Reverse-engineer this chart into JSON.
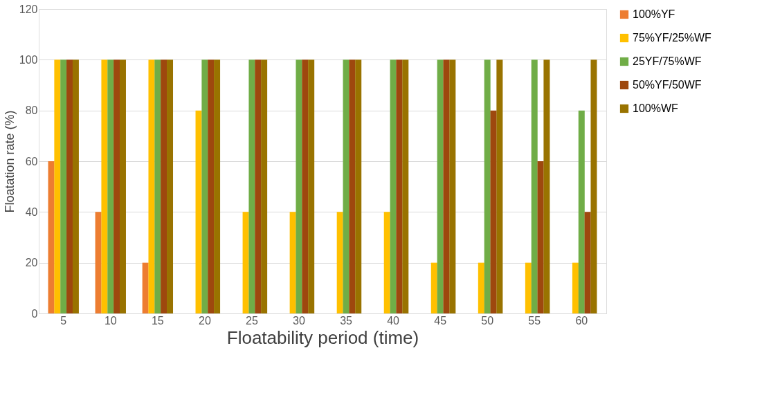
{
  "chart_data": {
    "type": "bar",
    "xlabel": "Floatability period (time)",
    "ylabel": "Floatation rate (%)",
    "categories": [
      "5",
      "10",
      "15",
      "20",
      "25",
      "30",
      "35",
      "40",
      "45",
      "50",
      "55",
      "60"
    ],
    "series": [
      {
        "name": "100%YF",
        "color": "#ed7d31",
        "values": [
          60,
          40,
          20,
          0,
          0,
          0,
          0,
          0,
          0,
          0,
          0,
          0
        ]
      },
      {
        "name": "75%YF/25%WF",
        "color": "#ffc000",
        "values": [
          100,
          100,
          100,
          80,
          40,
          40,
          40,
          40,
          20,
          20,
          20,
          20
        ]
      },
      {
        "name": "25YF/75%WF",
        "color": "#70ad47",
        "values": [
          100,
          100,
          100,
          100,
          100,
          100,
          100,
          100,
          100,
          100,
          100,
          80
        ]
      },
      {
        "name": "50%YF/50WF",
        "color": "#9e480e",
        "values": [
          100,
          100,
          100,
          100,
          100,
          100,
          100,
          100,
          100,
          80,
          60,
          40
        ]
      },
      {
        "name": "100%WF",
        "color": "#997300",
        "values": [
          100,
          100,
          100,
          100,
          100,
          100,
          100,
          100,
          100,
          100,
          100,
          100
        ]
      }
    ],
    "ylim": [
      0,
      120
    ],
    "yticks": [
      0,
      20,
      40,
      60,
      80,
      100,
      120
    ],
    "grid": "y",
    "legend": "right"
  }
}
